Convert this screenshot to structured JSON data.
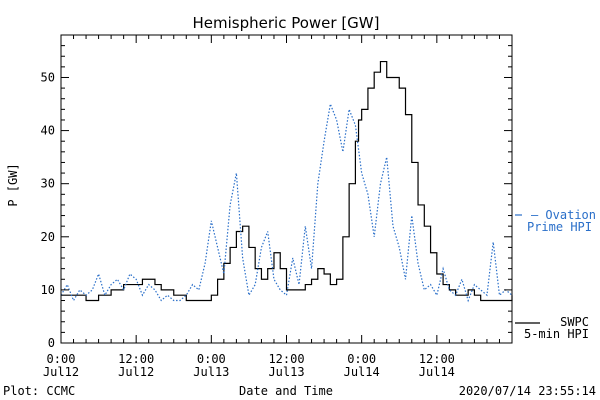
{
  "chart_data": {
    "type": "line",
    "title": "Hemispheric Power [GW]",
    "xlabel": "Date and Time",
    "ylabel": "P [GW]",
    "ylim": [
      0,
      58
    ],
    "xlim_hours": [
      0,
      72
    ],
    "y_ticks": [
      0,
      10,
      20,
      30,
      40,
      50
    ],
    "x_tick_labels": [
      {
        "t": 0,
        "time": "0:00",
        "date": "Jul12"
      },
      {
        "t": 12,
        "time": "12:00",
        "date": "Jul12"
      },
      {
        "t": 24,
        "time": "0:00",
        "date": "Jul13"
      },
      {
        "t": 36,
        "time": "12:00",
        "date": "Jul13"
      },
      {
        "t": 48,
        "time": "0:00",
        "date": "Jul14"
      },
      {
        "t": 60,
        "time": "12:00",
        "date": "Jul14"
      }
    ],
    "series": [
      {
        "name": "SWPC 5-min HPI",
        "color": "#000000",
        "style": "solid",
        "x": [
          0,
          2,
          4,
          6,
          8,
          10,
          11,
          12,
          13,
          14,
          15,
          16,
          17,
          18,
          19,
          20,
          21,
          22,
          23,
          24,
          25,
          26,
          27,
          28,
          29,
          30,
          31,
          32,
          33,
          34,
          35,
          36,
          37,
          38,
          39,
          40,
          41,
          42,
          43,
          44,
          45,
          46,
          47,
          47.5,
          48,
          49,
          50,
          51,
          52,
          53,
          54,
          55,
          56,
          57,
          58,
          59,
          60,
          61,
          62,
          63,
          64,
          65,
          66,
          67,
          68,
          69,
          70,
          71,
          72
        ],
        "y": [
          9,
          9,
          8,
          9,
          10,
          11,
          11,
          11,
          12,
          12,
          11,
          10,
          10,
          9,
          9,
          8,
          8,
          8,
          8,
          9,
          12,
          15,
          18,
          21,
          22,
          18,
          14,
          12,
          14,
          17,
          14,
          10,
          10,
          10,
          11,
          12,
          14,
          13,
          11,
          12,
          20,
          30,
          38,
          42,
          44,
          48,
          51,
          53,
          50,
          50,
          48,
          43,
          34,
          26,
          22,
          17,
          13,
          11,
          10,
          9,
          9,
          10,
          9,
          8,
          8,
          8,
          8,
          8,
          9
        ]
      },
      {
        "name": "Ovation Prime HPI",
        "color": "#2a6fc9",
        "style": "dotted",
        "x": [
          0,
          1,
          2,
          3,
          4,
          5,
          6,
          7,
          8,
          9,
          10,
          11,
          12,
          13,
          14,
          15,
          16,
          17,
          18,
          19,
          20,
          21,
          22,
          23,
          24,
          25,
          26,
          27,
          28,
          29,
          30,
          31,
          32,
          33,
          34,
          35,
          36,
          37,
          38,
          39,
          40,
          41,
          42,
          43,
          44,
          45,
          46,
          47,
          48,
          49,
          50,
          51,
          52,
          53,
          54,
          55,
          56,
          57,
          58,
          59,
          60,
          61,
          62,
          63,
          64,
          65,
          66,
          67,
          68,
          69,
          70,
          71,
          72
        ],
        "y": [
          9,
          11,
          8,
          10,
          9,
          10,
          13,
          9,
          11,
          12,
          10,
          13,
          12,
          9,
          11,
          10,
          8,
          9,
          8,
          8,
          9,
          11,
          10,
          15,
          23,
          18,
          13,
          26,
          32,
          16,
          9,
          11,
          18,
          21,
          12,
          10,
          9,
          16,
          11,
          22,
          14,
          30,
          38,
          45,
          42,
          36,
          44,
          41,
          32,
          28,
          20,
          30,
          35,
          22,
          18,
          12,
          24,
          15,
          10,
          11,
          9,
          14,
          10,
          9,
          12,
          8,
          11,
          10,
          9,
          19,
          9,
          10,
          9
        ]
      }
    ],
    "legend": [
      {
        "line1": "– Ovation",
        "line2": "Prime HPI",
        "color": "#2a6fc9"
      },
      {
        "line1": "SWPC",
        "line2": "5-min HPI",
        "color": "#000000"
      }
    ]
  },
  "footer": {
    "left": "Plot: CCMC",
    "timestamp": "2020/07/14 23:55:14"
  }
}
